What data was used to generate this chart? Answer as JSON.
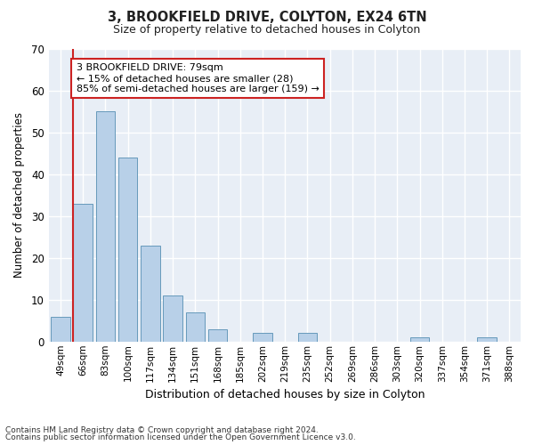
{
  "title1": "3, BROOKFIELD DRIVE, COLYTON, EX24 6TN",
  "title2": "Size of property relative to detached houses in Colyton",
  "xlabel": "Distribution of detached houses by size in Colyton",
  "ylabel": "Number of detached properties",
  "categories": [
    "49sqm",
    "66sqm",
    "83sqm",
    "100sqm",
    "117sqm",
    "134sqm",
    "151sqm",
    "168sqm",
    "185sqm",
    "202sqm",
    "219sqm",
    "235sqm",
    "252sqm",
    "269sqm",
    "286sqm",
    "303sqm",
    "320sqm",
    "337sqm",
    "354sqm",
    "371sqm",
    "388sqm"
  ],
  "values": [
    6,
    33,
    55,
    44,
    23,
    11,
    7,
    3,
    0,
    2,
    0,
    2,
    0,
    0,
    0,
    0,
    1,
    0,
    0,
    1,
    0
  ],
  "bar_color": "#b8d0e8",
  "bar_edge_color": "#6699bb",
  "fig_background": "#ffffff",
  "plot_background": "#e8eef6",
  "grid_color": "#ffffff",
  "vline_x": 0.545,
  "vline_color": "#cc2222",
  "annotation_text": "3 BROOKFIELD DRIVE: 79sqm\n← 15% of detached houses are smaller (28)\n85% of semi-detached houses are larger (159) →",
  "annotation_box_facecolor": "#ffffff",
  "annotation_box_edgecolor": "#cc2222",
  "ylim": [
    0,
    70
  ],
  "yticks": [
    0,
    10,
    20,
    30,
    40,
    50,
    60,
    70
  ],
  "footnote_line1": "Contains HM Land Registry data © Crown copyright and database right 2024.",
  "footnote_line2": "Contains public sector information licensed under the Open Government Licence v3.0."
}
